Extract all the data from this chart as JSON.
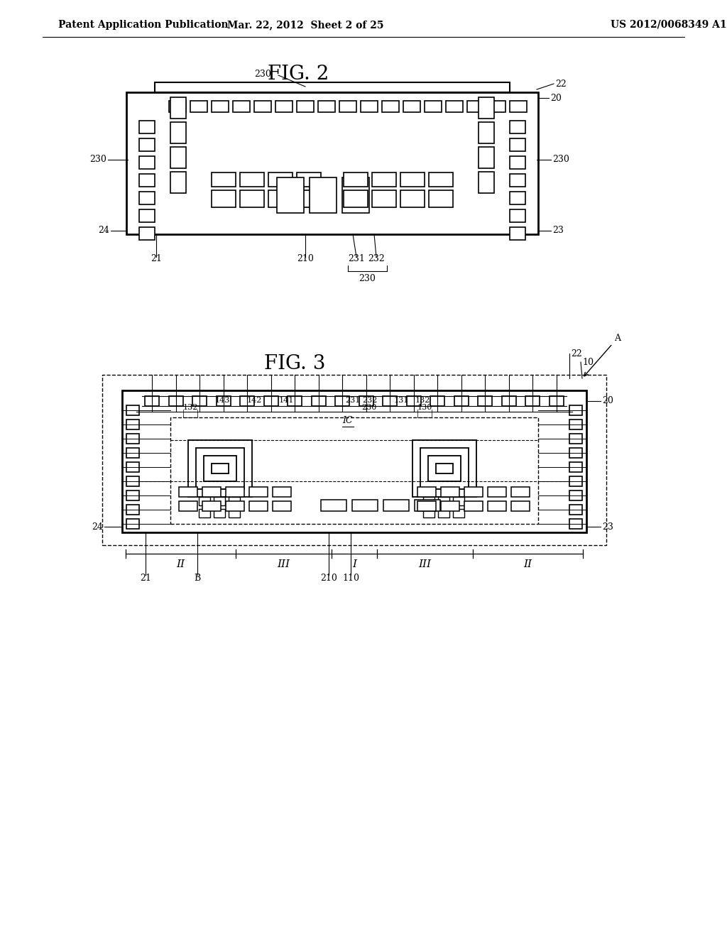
{
  "header_left": "Patent Application Publication",
  "header_mid": "Mar. 22, 2012  Sheet 2 of 25",
  "header_right": "US 2012/0068349 A1",
  "fig2_title": "FIG. 2",
  "fig3_title": "FIG. 3",
  "bg_color": "#ffffff",
  "line_color": "#000000"
}
